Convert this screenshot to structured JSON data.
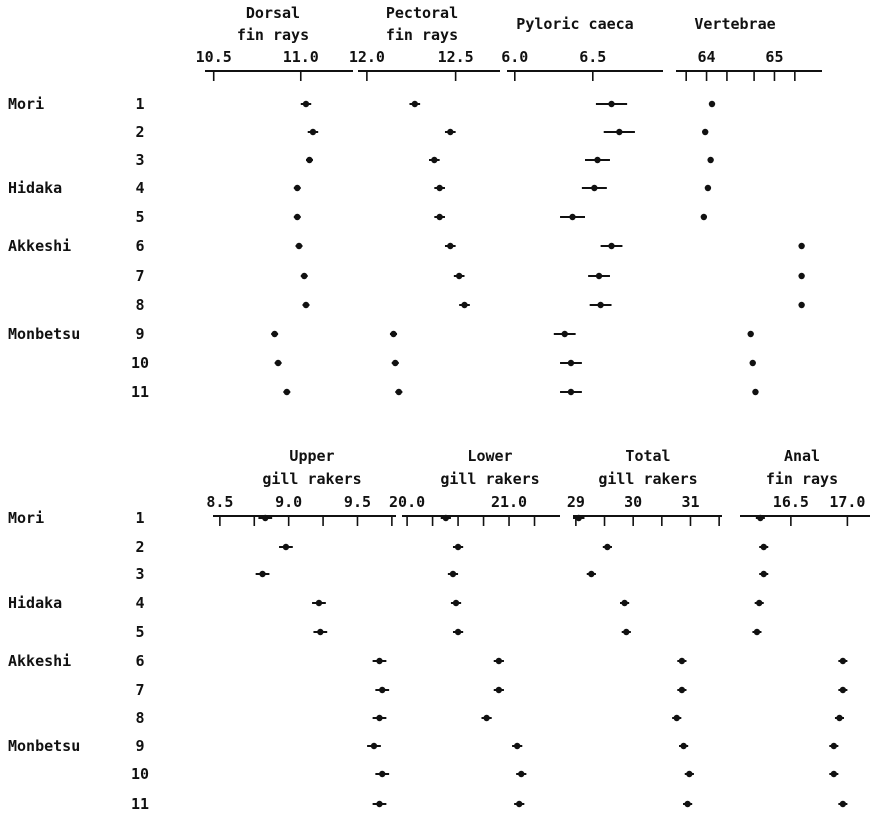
{
  "samples": [
    {
      "label": "1",
      "locality": "Mori"
    },
    {
      "label": "2",
      "locality": ""
    },
    {
      "label": "3",
      "locality": ""
    },
    {
      "label": "4",
      "locality": "Hidaka"
    },
    {
      "label": "5",
      "locality": ""
    },
    {
      "label": "6",
      "locality": "Akkeshi"
    },
    {
      "label": "7",
      "locality": ""
    },
    {
      "label": "8",
      "locality": ""
    },
    {
      "label": "9",
      "locality": "Monbetsu"
    },
    {
      "label": "10",
      "locality": ""
    },
    {
      "label": "11",
      "locality": ""
    }
  ],
  "chart_data": [
    {
      "type": "scatter",
      "title_lines": [
        "Dorsal",
        "fin rays"
      ],
      "ticks": [
        "10.5",
        "11.0"
      ],
      "tick_values": [
        10.5,
        11.0
      ],
      "xlim": [
        10.45,
        11.3
      ],
      "minor_ticks": [],
      "means": [
        11.03,
        11.07,
        11.05,
        10.98,
        10.98,
        10.99,
        11.02,
        11.03,
        10.85,
        10.87,
        10.92
      ],
      "errors": [
        0.03,
        0.03,
        0.02,
        0.02,
        0.02,
        0.02,
        0.02,
        0.02,
        0.02,
        0.02,
        0.02
      ]
    },
    {
      "type": "scatter",
      "title_lines": [
        "Pectoral",
        "fin rays"
      ],
      "ticks": [
        "12.0",
        "12.5"
      ],
      "tick_values": [
        12.0,
        12.5
      ],
      "xlim": [
        11.95,
        12.75
      ],
      "minor_ticks": [],
      "means": [
        12.27,
        12.47,
        12.38,
        12.41,
        12.41,
        12.47,
        12.52,
        12.55,
        12.15,
        12.16,
        12.18
      ],
      "errors": [
        0.03,
        0.03,
        0.03,
        0.03,
        0.03,
        0.03,
        0.03,
        0.03,
        0.02,
        0.02,
        0.02
      ]
    },
    {
      "type": "scatter",
      "title_lines": [
        "Pyloric caeca"
      ],
      "ticks": [
        "6.0",
        "6.5"
      ],
      "tick_values": [
        6.0,
        6.5
      ],
      "xlim": [
        5.95,
        6.95
      ],
      "minor_ticks": [],
      "means": [
        6.62,
        6.67,
        6.53,
        6.51,
        6.37,
        6.62,
        6.54,
        6.55,
        6.32,
        6.36,
        6.36
      ],
      "errors": [
        0.1,
        0.1,
        0.08,
        0.08,
        0.08,
        0.07,
        0.07,
        0.07,
        0.07,
        0.07,
        0.07
      ]
    },
    {
      "type": "scatter",
      "title_lines": [
        "Vertebrae"
      ],
      "ticks": [
        "64",
        "65"
      ],
      "tick_values": [
        64,
        65
      ],
      "xlim": [
        63.55,
        65.7
      ],
      "minor_ticks": [
        63.7,
        64.3,
        64.7,
        65.3
      ],
      "means": [
        64.08,
        63.98,
        64.06,
        64.02,
        63.96,
        null,
        null,
        null,
        null,
        null,
        null
      ],
      "errors": [
        0.04,
        0.04,
        0.04,
        0.04,
        0.04,
        null,
        null,
        null,
        null,
        null,
        null
      ],
      "means_right": [
        null,
        null,
        null,
        null,
        null,
        65.4,
        65.4,
        65.4,
        64.65,
        64.68,
        64.72
      ]
    },
    {
      "type": "scatter",
      "title_lines": [
        "Upper",
        "gill rakers"
      ],
      "ticks": [
        "8.5",
        "9.0",
        "9.5"
      ],
      "tick_values": [
        8.5,
        9.0,
        9.5
      ],
      "xlim": [
        8.45,
        9.78
      ],
      "minor_ticks": [
        8.75,
        9.25,
        9.75
      ],
      "means": [
        8.83,
        8.98,
        8.81,
        9.22,
        9.23,
        9.66,
        9.68,
        9.66,
        9.62,
        9.68,
        9.66
      ],
      "errors": [
        0.05,
        0.05,
        0.05,
        0.05,
        0.05,
        0.05,
        0.05,
        0.05,
        0.05,
        0.05,
        0.05
      ]
    },
    {
      "type": "scatter",
      "title_lines": [
        "Lower",
        "gill rakers"
      ],
      "ticks": [
        "20.0",
        "21.0"
      ],
      "tick_values": [
        20.0,
        21.0
      ],
      "xlim": [
        19.95,
        21.5
      ],
      "minor_ticks": [
        20.25,
        20.5,
        20.75,
        21.25
      ],
      "means": [
        20.38,
        20.5,
        20.45,
        20.48,
        20.5,
        20.9,
        20.9,
        20.78,
        21.08,
        21.12,
        21.1
      ],
      "errors": [
        0.05,
        0.05,
        0.05,
        0.05,
        0.05,
        0.05,
        0.05,
        0.05,
        0.05,
        0.05,
        0.05
      ]
    },
    {
      "type": "scatter",
      "title_lines": [
        "Total",
        "gill rakers"
      ],
      "ticks": [
        "29",
        "30",
        "31"
      ],
      "tick_values": [
        29,
        30,
        31
      ],
      "xlim": [
        28.95,
        31.55
      ],
      "minor_ticks": [
        29.5,
        30.5,
        31.5
      ],
      "means": [
        29.05,
        29.55,
        29.27,
        29.85,
        29.88,
        30.85,
        30.85,
        30.76,
        30.88,
        30.98,
        30.95
      ],
      "errors": [
        0.1,
        0.08,
        0.08,
        0.08,
        0.08,
        0.08,
        0.08,
        0.08,
        0.08,
        0.08,
        0.08
      ]
    },
    {
      "type": "scatter",
      "title_lines": [
        "Anal",
        "fin rays"
      ],
      "ticks": [
        "16.5",
        "17.0"
      ],
      "tick_values": [
        16.5,
        17.0
      ],
      "xlim": [
        16.05,
        17.2
      ],
      "minor_ticks": [],
      "means": [
        16.23,
        16.26,
        16.26,
        16.22,
        16.2,
        16.96,
        16.96,
        16.93,
        16.88,
        16.88,
        16.96
      ],
      "errors": [
        0.04,
        0.04,
        0.04,
        0.04,
        0.04,
        0.04,
        0.04,
        0.04,
        0.04,
        0.04,
        0.04
      ]
    }
  ]
}
